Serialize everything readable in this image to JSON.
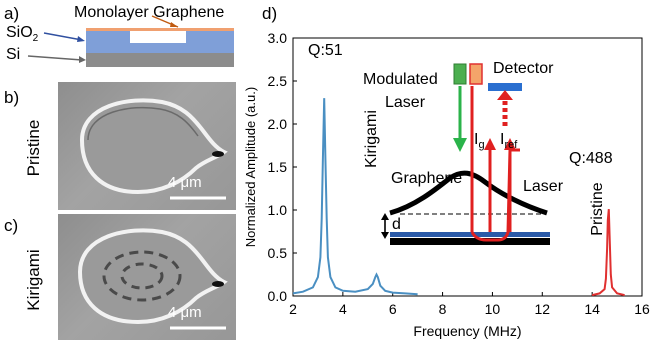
{
  "panel_a": {
    "letter": "a)",
    "graphene_label": "Monolayer Graphene",
    "sio2_label": "SiO",
    "sio2_sub": "2",
    "si_label": "Si"
  },
  "panel_b": {
    "letter": "b)",
    "side_label": "Pristine",
    "scale_label": "4 μm"
  },
  "panel_c": {
    "letter": "c)",
    "side_label": "Kirigami",
    "scale_label": "4 μm"
  },
  "panel_d": {
    "letter": "d)",
    "q_left": "Q:51",
    "q_right": "Q:488",
    "label_kirigami": "Kirigami",
    "label_pristine": "Pristine",
    "inset": {
      "modulated": "Modulated",
      "laser_word": "Laser",
      "detector": "Detector",
      "ig_main": "I",
      "ig_sub": "g",
      "iref_main": "I",
      "iref_sub": "ref",
      "graphene": "Graphene",
      "laser": "Laser",
      "d": "d"
    }
  },
  "colors": {
    "kirigami_series": "#4a8fc2",
    "pristine_series": "#e03030",
    "sio2": "#7f9fd8",
    "graphene_layer": "#f0a070",
    "si": "#8c8c8c",
    "modulated_laser_green": "#4caf50",
    "detector_blue": "#2a6fd0",
    "arrow_green": "#2bb34a",
    "laser_red": "#e02020"
  },
  "chart_data": {
    "type": "line",
    "xlabel": "Frequency (MHz)",
    "ylabel": "Normalized Amplitude (a.u.)",
    "xlim": [
      2,
      16
    ],
    "ylim": [
      0.0,
      3.0
    ],
    "xticks": [
      2,
      4,
      6,
      8,
      10,
      12,
      14,
      16
    ],
    "yticks": [
      0.0,
      0.5,
      1.0,
      1.5,
      2.0,
      2.5,
      3.0
    ],
    "xtick_labels": [
      "2",
      "4",
      "6",
      "8",
      "10",
      "12",
      "14",
      "16"
    ],
    "ytick_labels": [
      "0.0",
      "0.5",
      "1.0",
      "1.5",
      "2.0",
      "2.5",
      "3.0"
    ],
    "series": [
      {
        "x": [
          2.0,
          2.4,
          2.8,
          3.0,
          3.1,
          3.15,
          3.2,
          3.25,
          3.3,
          3.35,
          3.4,
          3.5,
          3.7,
          4.0,
          4.5,
          5.0,
          5.2,
          5.3,
          5.35,
          5.4,
          5.5,
          5.7,
          6.0,
          6.5,
          7.0
        ],
        "y": [
          0.03,
          0.05,
          0.1,
          0.22,
          0.45,
          0.9,
          1.6,
          2.3,
          1.6,
          0.9,
          0.45,
          0.22,
          0.1,
          0.06,
          0.05,
          0.08,
          0.14,
          0.22,
          0.25,
          0.22,
          0.12,
          0.06,
          0.04,
          0.03,
          0.02
        ]
      },
      {
        "x": [
          14.0,
          14.3,
          14.5,
          14.55,
          14.6,
          14.63,
          14.67,
          14.7,
          14.75,
          14.8,
          15.0,
          15.3
        ],
        "y": [
          0.01,
          0.03,
          0.08,
          0.2,
          0.55,
          0.88,
          1.01,
          0.7,
          0.25,
          0.1,
          0.03,
          0.01
        ]
      }
    ]
  }
}
